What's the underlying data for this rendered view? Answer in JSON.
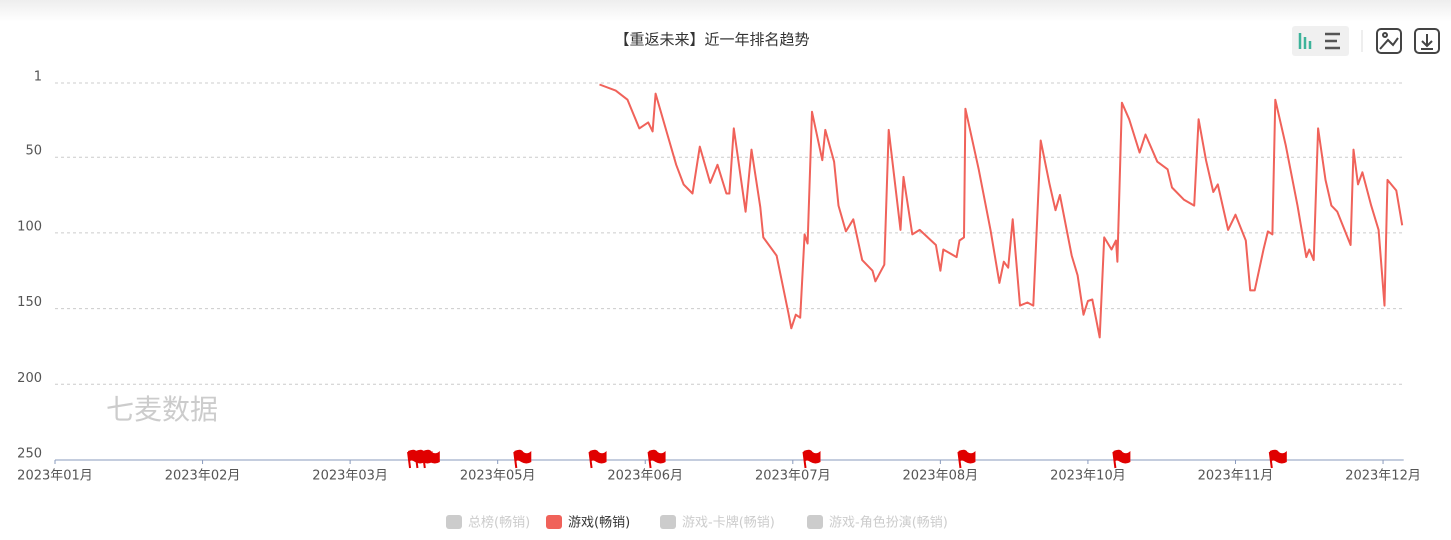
{
  "chart_data": {
    "type": "line",
    "title": "【重返未来】近一年排名趋势",
    "watermark": "七麦数据",
    "ylim": [
      1,
      250
    ],
    "inverted": true,
    "yticks": [
      1,
      50,
      100,
      150,
      200,
      250
    ],
    "xlim": [
      0,
      9.14
    ],
    "xticks": [
      {
        "value": 0,
        "label": "2023年01月"
      },
      {
        "value": 1,
        "label": "2023年02月"
      },
      {
        "value": 2,
        "label": "2023年03月"
      },
      {
        "value": 3,
        "label": "2023年05月"
      },
      {
        "value": 4,
        "label": "2023年06月"
      },
      {
        "value": 5,
        "label": "2023年07月"
      },
      {
        "value": 6,
        "label": "2023年08月"
      },
      {
        "value": 7,
        "label": "2023年10月"
      },
      {
        "value": 8,
        "label": "2023年11月"
      },
      {
        "value": 9,
        "label": "2023年12月"
      }
    ],
    "grid": true,
    "x": [
      3.69,
      3.8,
      3.88,
      3.96,
      4.02,
      4.05,
      4.07,
      4.15,
      4.21,
      4.26,
      4.32,
      4.37,
      4.44,
      4.49,
      4.55,
      4.57,
      4.6,
      4.68,
      4.72,
      4.78,
      4.8,
      4.89,
      4.97,
      4.99,
      5.02,
      5.05,
      5.08,
      5.1,
      5.13,
      5.2,
      5.22,
      5.28,
      5.31,
      5.36,
      5.41,
      5.47,
      5.54,
      5.56,
      5.62,
      5.65,
      5.73,
      5.75,
      5.81,
      5.86,
      5.97,
      6.0,
      6.02,
      6.11,
      6.13,
      6.16,
      6.17,
      6.26,
      6.34,
      6.4,
      6.43,
      6.46,
      6.49,
      6.54,
      6.59,
      6.63,
      6.68,
      6.74,
      6.78,
      6.81,
      6.89,
      6.93,
      6.97,
      7.0,
      7.03,
      7.08,
      7.11,
      7.16,
      7.19,
      7.2,
      7.23,
      7.28,
      7.35,
      7.39,
      7.47,
      7.54,
      7.57,
      7.65,
      7.72,
      7.75,
      7.8,
      7.85,
      7.88,
      7.95,
      8.0,
      8.07,
      8.1,
      8.13,
      8.19,
      8.22,
      8.25,
      8.27,
      8.34,
      8.42,
      8.48,
      8.5,
      8.53,
      8.56,
      8.61,
      8.65,
      8.69,
      8.78,
      8.8,
      8.83,
      8.86,
      8.92,
      8.97,
      9.01,
      9.03,
      9.09,
      9.13
    ],
    "series": [
      {
        "name": "游戏(畅销)",
        "color": "#f0625a",
        "values": [
          2,
          6,
          12,
          31,
          27,
          33,
          8,
          35,
          55,
          68,
          74,
          43,
          67,
          55,
          74,
          74,
          31,
          86,
          45,
          83,
          103,
          115,
          153,
          163,
          154,
          156,
          101,
          107,
          20,
          52,
          32,
          53,
          82,
          99,
          91,
          118,
          125,
          132,
          121,
          32,
          98,
          63,
          101,
          98,
          108,
          125,
          111,
          116,
          105,
          103,
          18,
          58,
          98,
          133,
          119,
          123,
          91,
          148,
          146,
          148,
          39,
          68,
          85,
          75,
          115,
          128,
          154,
          145,
          144,
          169,
          103,
          111,
          105,
          119,
          14,
          25,
          47,
          35,
          53,
          58,
          70,
          78,
          82,
          25,
          52,
          73,
          68,
          98,
          88,
          105,
          138,
          138,
          111,
          99,
          101,
          12,
          42,
          82,
          116,
          111,
          118,
          31,
          65,
          82,
          86,
          108,
          45,
          68,
          60,
          82,
          98,
          148,
          65,
          72,
          95
        ]
      }
    ],
    "flags": {
      "color": "#e00000",
      "x": [
        2.44,
        2.49,
        2.54,
        3.16,
        3.67,
        4.07,
        5.12,
        6.17,
        7.22,
        8.28
      ]
    },
    "legend": [
      {
        "name": "总榜(畅销)",
        "color": "#cccccc"
      },
      {
        "name": "游戏(畅销)",
        "color": "#f0625a"
      },
      {
        "name": "游戏-卡牌(畅销)",
        "color": "#cccccc"
      },
      {
        "name": "游戏-角色扮演(畅销)",
        "color": "#cccccc"
      }
    ]
  }
}
